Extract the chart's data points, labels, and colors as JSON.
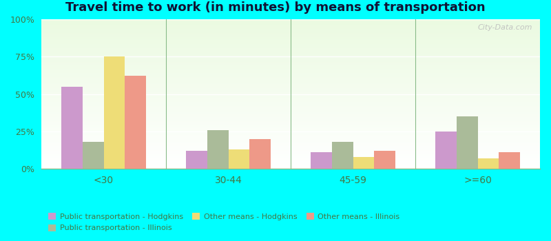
{
  "title": "Travel time to work (in minutes) by means of transportation",
  "categories": [
    "<30",
    "30-44",
    "45-59",
    ">=60"
  ],
  "series": [
    {
      "name": "Public transportation - Hodgkins",
      "values": [
        55,
        12,
        11,
        25
      ],
      "color": "#cc99cc"
    },
    {
      "name": "Public transportation - Illinois",
      "values": [
        18,
        26,
        18,
        35
      ],
      "color": "#aabb99"
    },
    {
      "name": "Other means - Hodgkins",
      "values": [
        75,
        13,
        8,
        7
      ],
      "color": "#eedd77"
    },
    {
      "name": "Other means - Illinois",
      "values": [
        62,
        20,
        12,
        11
      ],
      "color": "#ee9988"
    }
  ],
  "ylim": [
    0,
    100
  ],
  "yticks": [
    0,
    25,
    50,
    75,
    100
  ],
  "ytick_labels": [
    "0%",
    "25%",
    "50%",
    "75%",
    "100%"
  ],
  "outer_bg": "#00ffff",
  "bar_width": 0.17,
  "title_fontsize": 13,
  "watermark": "City-Data.com",
  "legend_order": [
    0,
    2,
    3,
    1
  ],
  "legend_labels": [
    "Public transportation - Hodgkins",
    "Public transportation - Illinois",
    "Other means - Hodgkins",
    "Other means - Illinois"
  ]
}
